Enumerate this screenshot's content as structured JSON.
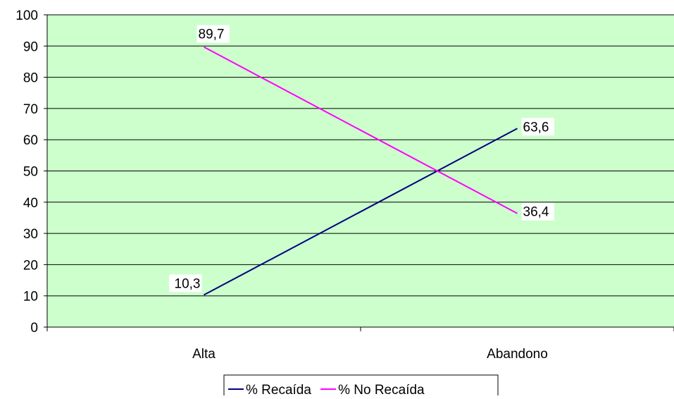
{
  "chart_data": {
    "type": "line",
    "categories": [
      "Alta",
      "Abandono"
    ],
    "series": [
      {
        "name": "% Recaída",
        "values": [
          10.3,
          63.6
        ],
        "labels": [
          "10,3",
          "63,6"
        ],
        "color": "#000080"
      },
      {
        "name": "% No Recaída",
        "values": [
          89.7,
          36.4
        ],
        "labels": [
          "89,7",
          "36,4"
        ],
        "color": "#ff00ff"
      }
    ],
    "ylim": [
      0,
      100
    ],
    "yticks": [
      0,
      10,
      20,
      30,
      40,
      50,
      60,
      70,
      80,
      90,
      100
    ],
    "grid": true,
    "plot_background": "#ccffcc",
    "legend_position": "bottom"
  }
}
